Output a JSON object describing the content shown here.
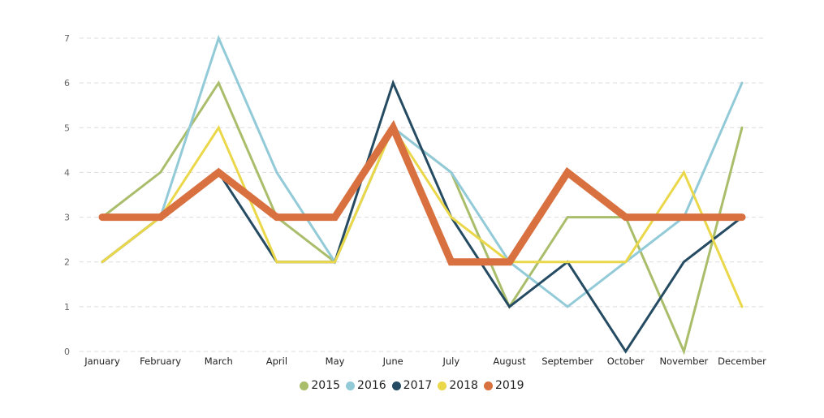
{
  "chart_data": {
    "type": "line",
    "categories": [
      "January",
      "February",
      "March",
      "April",
      "May",
      "June",
      "July",
      "August",
      "September",
      "October",
      "November",
      "December"
    ],
    "ylim": [
      0,
      7
    ],
    "yticks": [
      0,
      1,
      2,
      3,
      4,
      5,
      6,
      7
    ],
    "grid": true,
    "legend_position": "bottom",
    "series": [
      {
        "name": "2015",
        "color": "#a9bd6a",
        "values": [
          3,
          4,
          6,
          3,
          2,
          5,
          4,
          1,
          3,
          3,
          0,
          5
        ]
      },
      {
        "name": "2016",
        "color": "#92cad8",
        "values": [
          2,
          3,
          7,
          4,
          2,
          5,
          4,
          2,
          1,
          2,
          3,
          6
        ]
      },
      {
        "name": "2017",
        "color": "#254b62",
        "values": [
          2,
          3,
          4,
          2,
          2,
          6,
          3,
          1,
          2,
          0,
          2,
          3
        ]
      },
      {
        "name": "2018",
        "color": "#ead84a",
        "values": [
          2,
          3,
          5,
          2,
          2,
          5,
          3,
          2,
          2,
          2,
          4,
          1
        ]
      },
      {
        "name": "2019",
        "color": "#d8703f",
        "values": [
          3,
          3,
          4,
          3,
          3,
          5,
          2,
          2,
          4,
          3,
          3,
          3
        ]
      }
    ]
  }
}
